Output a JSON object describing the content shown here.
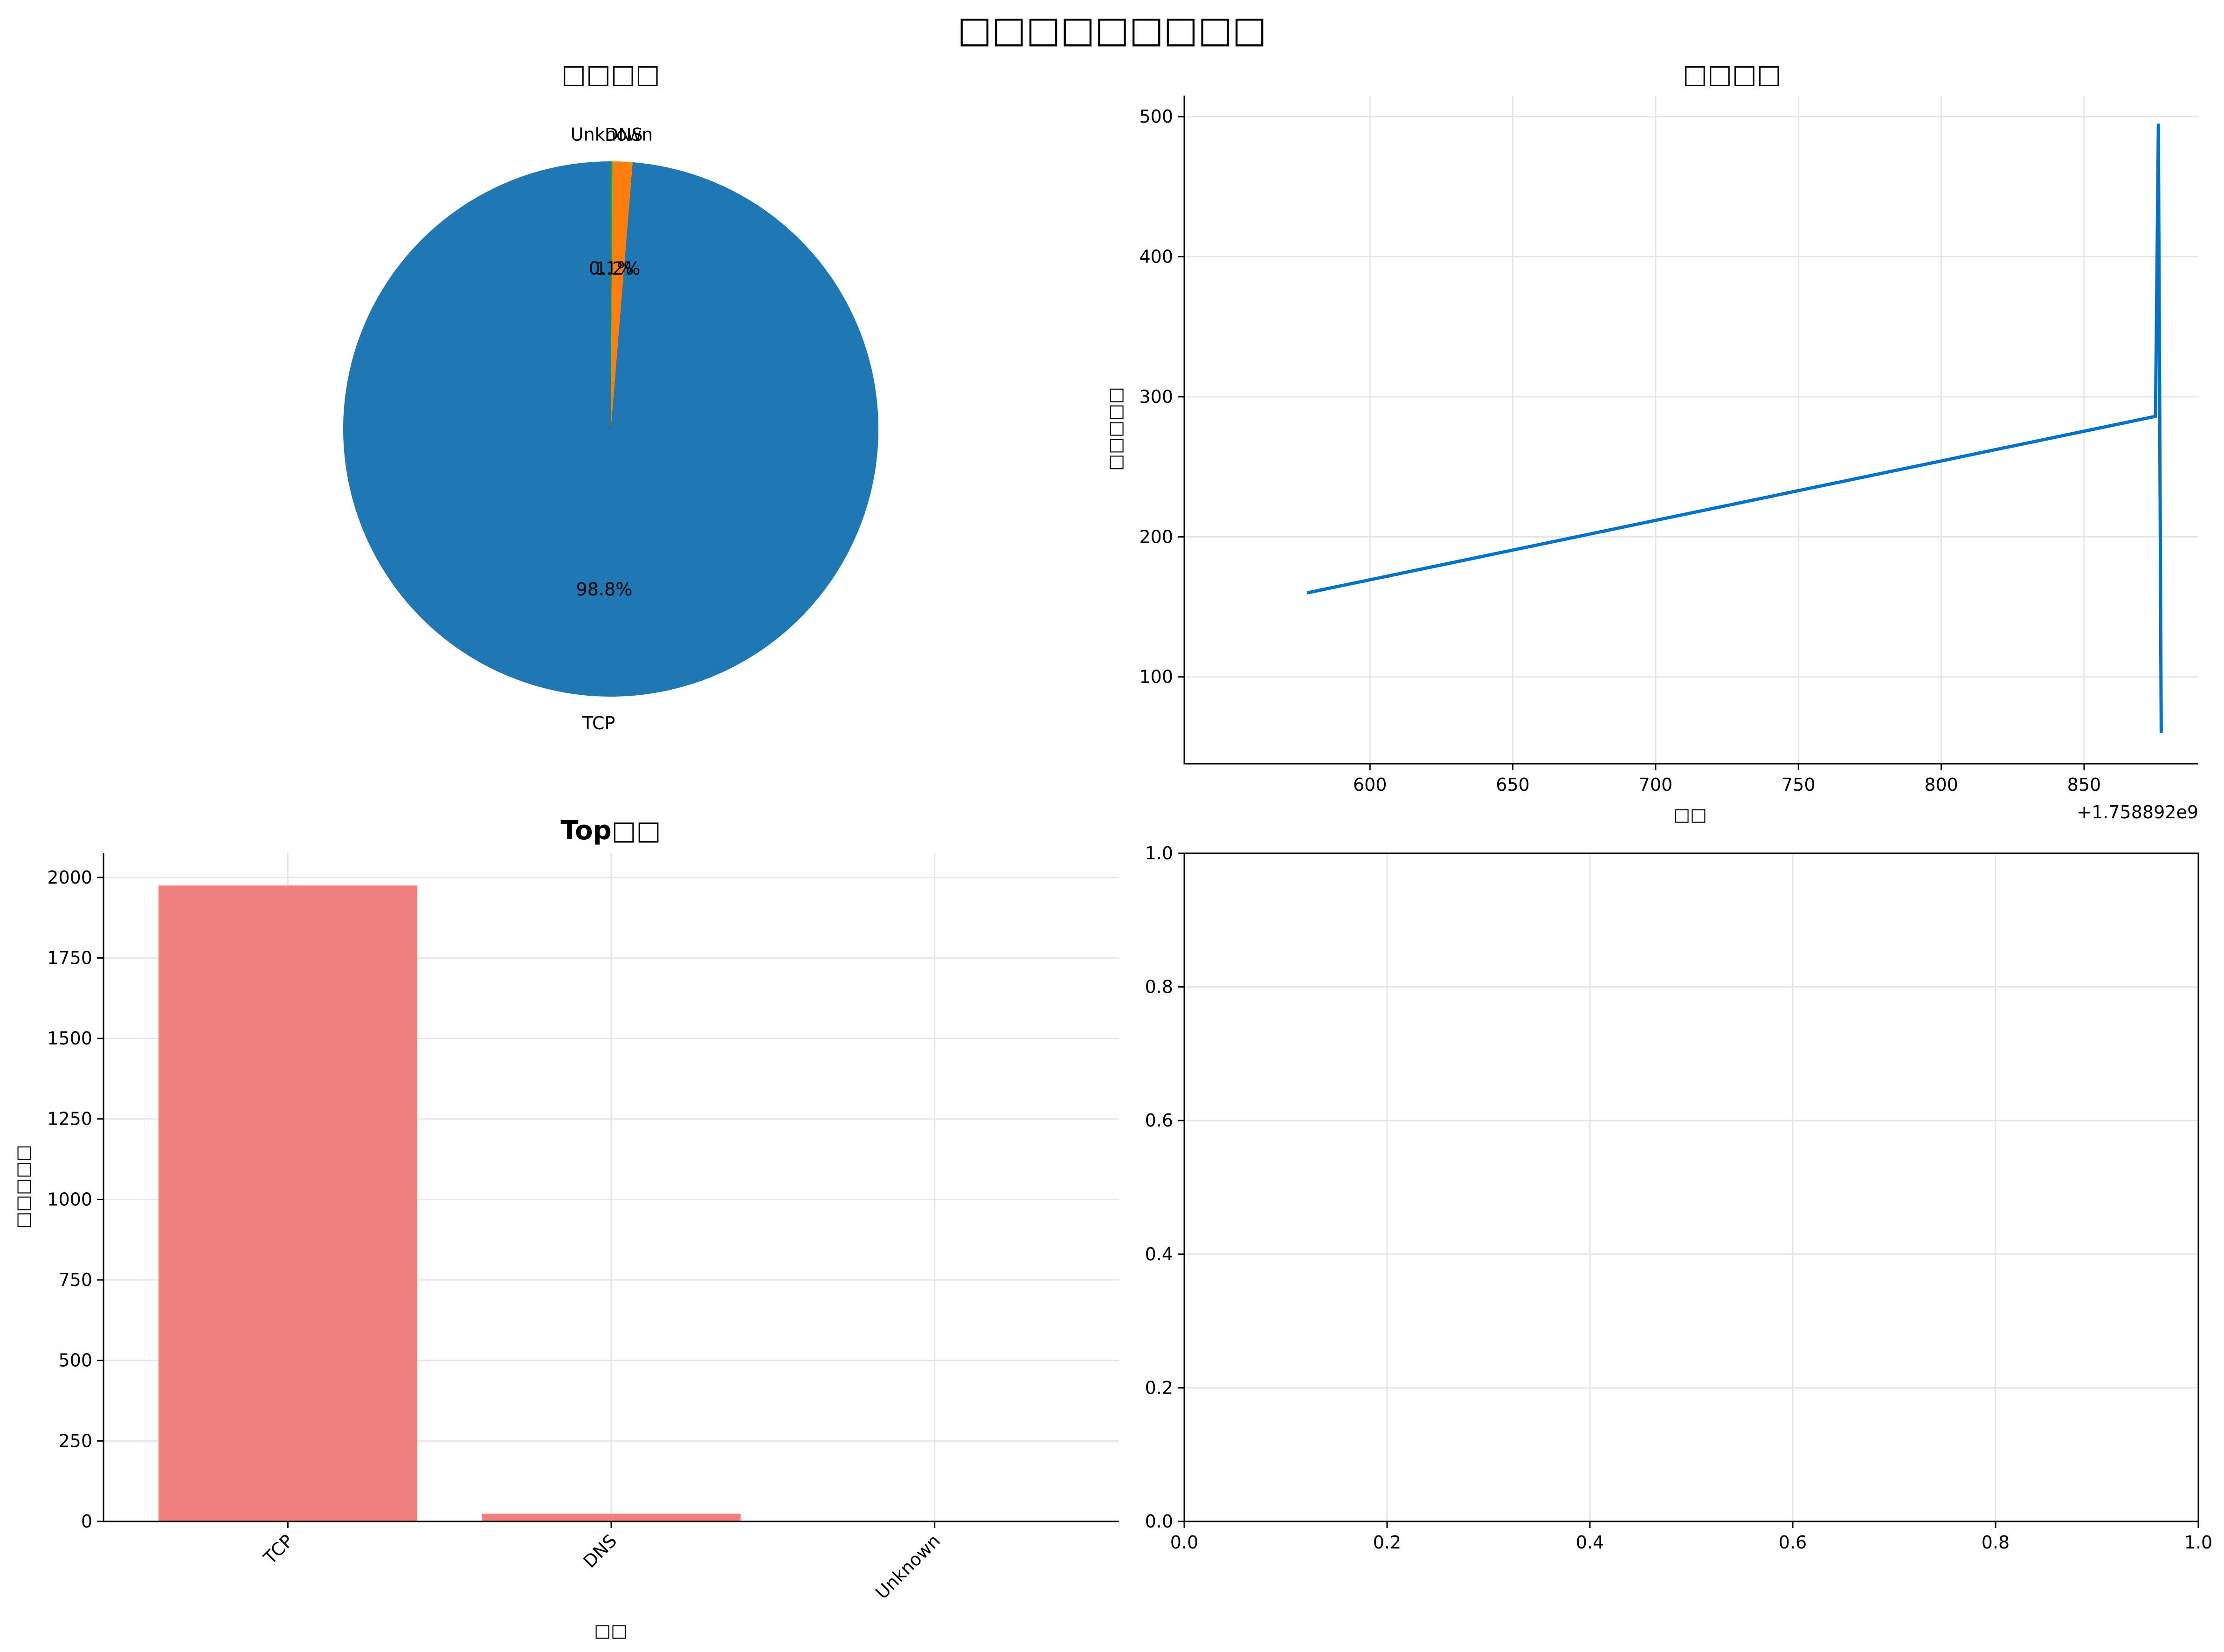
{
  "figure": {
    "suptitle": "□□□□□□□□□"
  },
  "chart_data": [
    {
      "type": "pie",
      "title": "□□□□",
      "labels": [
        "TCP",
        "DNS",
        "Unknown"
      ],
      "values": [
        98.8,
        1.2,
        0.1
      ],
      "autopct_labels": [
        "98.8%",
        "1.2%",
        "0.1%"
      ],
      "colors": [
        "#1f77b4",
        "#ff7f0e",
        "#2ca02c"
      ],
      "start_angle_deg": 90
    },
    {
      "type": "line",
      "title": "□□□□",
      "xlabel": "□□",
      "ylabel": "□□□□□",
      "x_offset_label": "+1.758892e9",
      "x": [
        578,
        875,
        876,
        877
      ],
      "y": [
        160,
        286,
        494,
        60
      ],
      "xlim": [
        535,
        863.5
      ],
      "xlim_note": "",
      "ylim": [
        38,
        515
      ],
      "xticks": [
        600,
        650,
        700,
        750,
        800,
        850
      ],
      "yticks": [
        100,
        200,
        300,
        400,
        500
      ],
      "color": "#0072c8",
      "grid": true
    },
    {
      "type": "bar",
      "title": "Top□□",
      "xlabel": "□□",
      "ylabel": "□□□□□",
      "categories": [
        "TCP",
        "DNS",
        "Unknown"
      ],
      "values": [
        1975,
        24,
        2
      ],
      "ylim": [
        0,
        2075
      ],
      "yticks": [
        0,
        250,
        500,
        750,
        1000,
        1250,
        1500,
        1750,
        2000
      ],
      "color": "#f08080",
      "grid": true
    },
    {
      "type": "line",
      "title": "",
      "x": [],
      "y": [],
      "xlim": [
        0,
        1
      ],
      "ylim": [
        0,
        1
      ],
      "xticks": [
        "0.0",
        "0.2",
        "0.4",
        "0.6",
        "0.8",
        "1.0"
      ],
      "yticks": [
        "0.0",
        "0.2",
        "0.4",
        "0.6",
        "0.8",
        "1.0"
      ],
      "grid": true
    }
  ]
}
